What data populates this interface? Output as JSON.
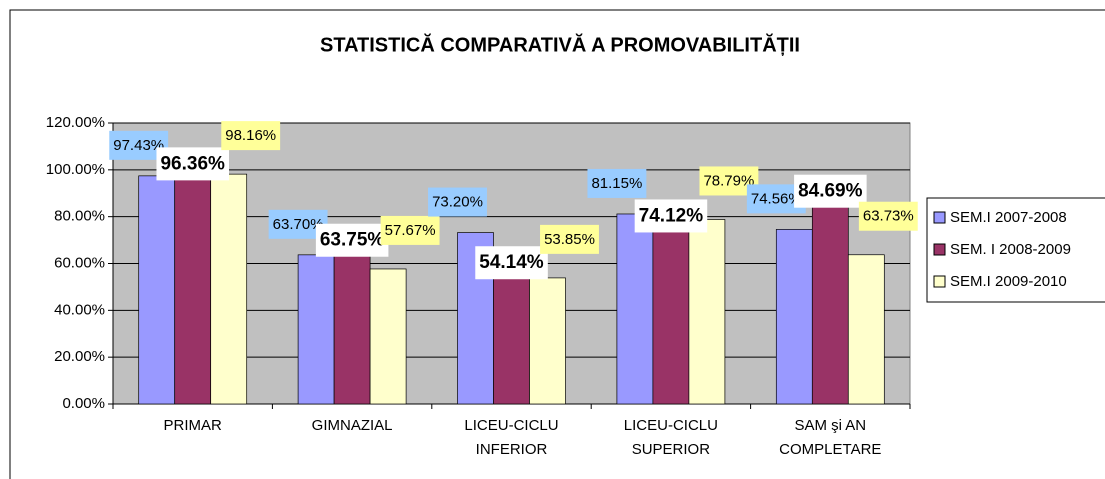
{
  "chart_data": {
    "type": "bar",
    "title": "STATISTICĂ COMPARATIVĂ A PROMOVABILITĂȚII",
    "categories": [
      "PRIMAR",
      "GIMNAZIAL",
      "LICEU-CICLU INFERIOR",
      "LICEU-CICLU SUPERIOR",
      "SAM şi AN COMPLETARE"
    ],
    "series": [
      {
        "name": "SEM.I 2007-2008",
        "color": "#9999ff",
        "values": [
          97.43,
          63.7,
          73.2,
          81.15,
          74.56
        ],
        "value_labels": [
          "97.43%",
          "63.70%",
          "73.20%",
          "81.15%",
          "74.56%"
        ]
      },
      {
        "name": "SEM. I 2008-2009",
        "color": "#993366",
        "values": [
          96.36,
          63.75,
          54.14,
          74.12,
          84.69
        ],
        "value_labels": [
          "96.36%",
          "63.75%",
          "54.14%",
          "74.12%",
          "84.69%"
        ]
      },
      {
        "name": "SEM.I 2009-2010",
        "color": "#ffffcc",
        "values": [
          98.16,
          57.67,
          53.85,
          78.79,
          63.73
        ],
        "value_labels": [
          "98.16%",
          "57.67%",
          "53.85%",
          "78.79%",
          "63.73%"
        ]
      }
    ],
    "ylim": [
      0,
      120
    ],
    "yticks": [
      {
        "value": 0,
        "label": "0.00%"
      },
      {
        "value": 20,
        "label": "20.00%"
      },
      {
        "value": 40,
        "label": "40.00%"
      },
      {
        "value": 60,
        "label": "60.00%"
      },
      {
        "value": 80,
        "label": "80.00%"
      },
      {
        "value": 100,
        "label": "100.00%"
      },
      {
        "value": 120,
        "label": "120.00%"
      }
    ],
    "legend": "right"
  }
}
